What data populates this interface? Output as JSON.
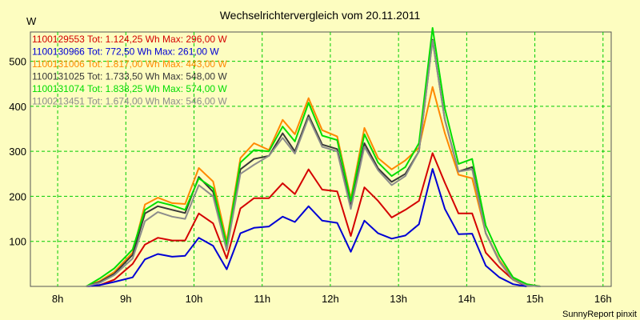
{
  "chart_data": {
    "type": "line",
    "title": "Wechselrichtervergleich vom 20.11.2011",
    "ylabel": "W",
    "xlabel": "",
    "x_ticks": [
      "8h",
      "9h",
      "10h",
      "11h",
      "12h",
      "13h",
      "14h",
      "15h",
      "16h"
    ],
    "y_ticks": [
      100,
      200,
      300,
      400,
      500
    ],
    "xlim": [
      7.6,
      16.12
    ],
    "ylim": [
      0,
      565
    ],
    "grid": true,
    "legend_position": "top-left",
    "x": [
      8.42,
      8.62,
      8.83,
      9.1,
      9.28,
      9.47,
      9.68,
      9.87,
      10.07,
      10.28,
      10.48,
      10.68,
      10.88,
      11.1,
      11.3,
      11.48,
      11.68,
      11.88,
      12.1,
      12.3,
      12.5,
      12.7,
      12.9,
      13.1,
      13.3,
      13.5,
      13.68,
      13.88,
      14.08,
      14.28,
      14.48,
      14.68,
      14.88,
      15.08,
      15.28,
      15.48,
      15.68,
      15.88,
      16.0
    ],
    "series": [
      {
        "name": "1100129553",
        "legend": "1100129553 Tot: 1.124,25 Wh Max: 296,00 W",
        "color": "#d40000",
        "values": [
          0,
          3,
          15,
          50,
          93,
          108,
          102,
          102,
          162,
          140,
          62,
          173,
          196,
          196,
          229,
          205,
          260,
          215,
          211,
          112,
          220,
          190,
          153,
          170,
          190,
          296,
          230,
          162,
          162,
          75,
          42,
          15,
          0,
          null,
          null,
          null,
          null,
          null,
          null
        ]
      },
      {
        "name": "1100130966",
        "legend": "1100130966 Tot: 772,50 Wh Max: 261,00 W",
        "color": "#0000d4",
        "values": [
          0,
          3,
          10,
          20,
          60,
          72,
          66,
          68,
          108,
          90,
          38,
          118,
          130,
          133,
          155,
          143,
          178,
          146,
          141,
          77,
          146,
          118,
          106,
          113,
          138,
          261,
          172,
          116,
          117,
          46,
          20,
          5,
          0,
          null,
          null,
          null,
          null,
          null,
          null
        ]
      },
      {
        "name": "1100131006",
        "legend": "1100131006 Tot: 1.817,00 Wh Max: 443,00 W",
        "color": "#ff8800",
        "values": [
          0,
          12,
          32,
          75,
          182,
          197,
          185,
          183,
          263,
          233,
          100,
          285,
          318,
          303,
          370,
          338,
          418,
          347,
          333,
          195,
          352,
          285,
          260,
          280,
          308,
          443,
          340,
          248,
          240,
          118,
          58,
          18,
          5,
          0,
          null,
          null,
          null,
          null,
          null
        ]
      },
      {
        "name": "1100131025",
        "legend": "1100131025 Tot: 1.733,50 Wh Max: 548,00 W",
        "color": "#383838",
        "values": [
          0,
          10,
          28,
          70,
          162,
          178,
          170,
          163,
          243,
          210,
          88,
          260,
          283,
          290,
          340,
          300,
          380,
          315,
          305,
          178,
          318,
          262,
          232,
          250,
          300,
          548,
          370,
          255,
          265,
          118,
          55,
          15,
          2,
          0,
          null,
          null,
          null,
          null,
          null
        ]
      },
      {
        "name": "1100131074",
        "legend": "1100131074 Tot: 1.838,25 Wh Max: 574,00 W",
        "color": "#00dd00",
        "values": [
          0,
          18,
          40,
          82,
          170,
          188,
          180,
          170,
          240,
          218,
          92,
          275,
          303,
          300,
          355,
          322,
          408,
          335,
          325,
          190,
          338,
          275,
          245,
          265,
          318,
          574,
          395,
          272,
          283,
          135,
          68,
          20,
          5,
          0,
          null,
          null,
          null,
          null,
          null
        ]
      },
      {
        "name": "1100213451",
        "legend": "1100213451 Tot: 1.674,00 Wh Max: 546,00 W",
        "color": "#8c8c8c",
        "values": [
          0,
          8,
          25,
          62,
          145,
          165,
          155,
          150,
          225,
          200,
          80,
          250,
          270,
          290,
          330,
          295,
          375,
          310,
          300,
          172,
          310,
          258,
          225,
          245,
          300,
          546,
          370,
          255,
          260,
          118,
          55,
          15,
          2,
          0,
          null,
          null,
          null,
          null,
          null
        ]
      }
    ],
    "credit": "SunnyReport pinxit"
  }
}
